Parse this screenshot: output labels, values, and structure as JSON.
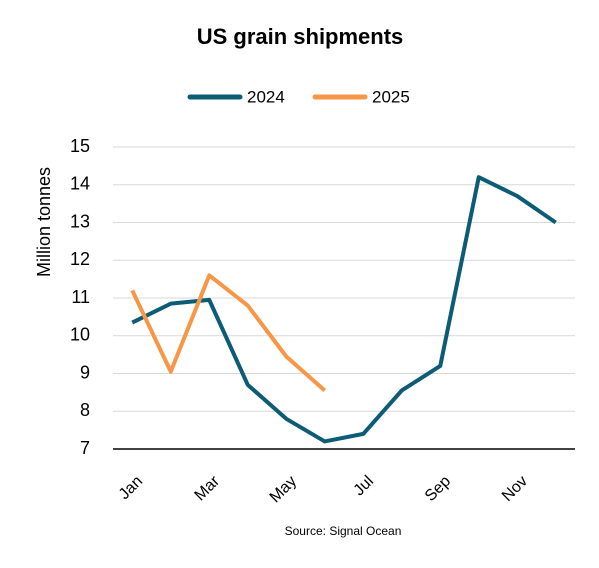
{
  "chart_data": {
    "type": "line",
    "title": "US grain shipments",
    "y_label": "Million tonnes",
    "source": "Source: Signal Ocean",
    "categories": [
      "Jan",
      null,
      "Mar",
      null,
      "May",
      null,
      "Jul",
      null,
      "Sep",
      null,
      "Nov",
      null
    ],
    "series": [
      {
        "name": "2024",
        "color": "#0d5c75",
        "values": [
          10.35,
          10.85,
          10.95,
          8.7,
          7.8,
          7.2,
          7.4,
          8.55,
          9.2,
          14.2,
          13.7,
          13.0
        ]
      },
      {
        "name": "2025",
        "color": "#f79646",
        "values": [
          11.2,
          9.05,
          11.6,
          10.8,
          9.45,
          8.55,
          null,
          null,
          null,
          null,
          null,
          null
        ]
      }
    ],
    "ylim": [
      7,
      15
    ],
    "yticks": [
      7,
      8,
      9,
      10,
      11,
      12,
      13,
      14,
      15
    ],
    "grid": true,
    "legend": "top"
  }
}
